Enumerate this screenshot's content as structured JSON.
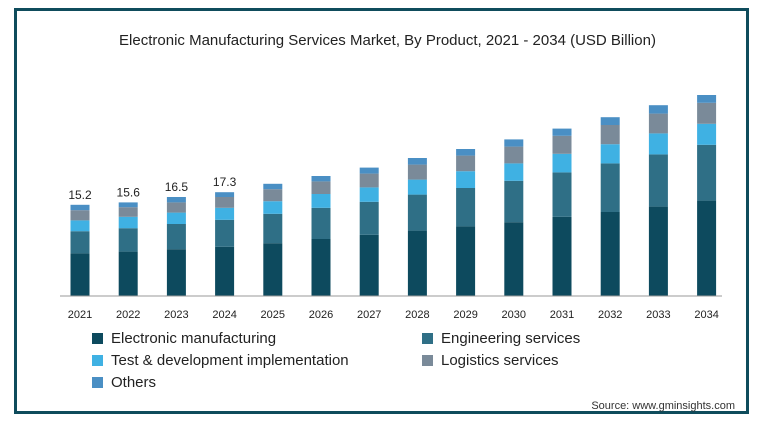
{
  "chart_data": {
    "type": "bar",
    "stacked": true,
    "title": "Electronic Manufacturing Services Market, By Product, 2021 - 2034 (USD Billion)",
    "xlabel": "",
    "ylabel": "",
    "categories": [
      "2021",
      "2022",
      "2023",
      "2024",
      "2025",
      "2026",
      "2027",
      "2028",
      "2029",
      "2030",
      "2031",
      "2032",
      "2033",
      "2034"
    ],
    "series": [
      {
        "name": "Electronic manufacturing",
        "color": "#0d4a5e",
        "values": [
          7.1,
          7.4,
          7.8,
          8.2,
          8.8,
          9.5,
          10.2,
          10.9,
          11.6,
          12.3,
          13.2,
          14.0,
          14.9,
          15.9
        ]
      },
      {
        "name": "Engineering services",
        "color": "#2f6f86",
        "values": [
          3.7,
          3.9,
          4.2,
          4.5,
          4.9,
          5.2,
          5.5,
          6.0,
          6.4,
          6.9,
          7.4,
          8.1,
          8.7,
          9.3
        ]
      },
      {
        "name": "Test & development implementation",
        "color": "#3fb1e3",
        "values": [
          1.8,
          1.9,
          1.9,
          2.0,
          2.1,
          2.3,
          2.4,
          2.5,
          2.8,
          2.9,
          3.1,
          3.2,
          3.5,
          3.5
        ]
      },
      {
        "name": "Logistics services",
        "color": "#7a8a99",
        "values": [
          1.7,
          1.6,
          1.7,
          1.8,
          2.0,
          2.1,
          2.3,
          2.5,
          2.6,
          2.8,
          3.0,
          3.2,
          3.3,
          3.5
        ]
      },
      {
        "name": "Others",
        "color": "#4a8fc4",
        "values": [
          0.9,
          0.8,
          0.9,
          0.8,
          0.9,
          0.9,
          1.0,
          1.1,
          1.1,
          1.2,
          1.2,
          1.3,
          1.4,
          1.3
        ]
      }
    ],
    "data_labels": [
      "15.2",
      "15.6",
      "16.5",
      "17.3"
    ],
    "ylim": [
      0,
      34
    ],
    "grid": false,
    "legend_position": "bottom"
  },
  "source": "Source: www.gminsights.com"
}
